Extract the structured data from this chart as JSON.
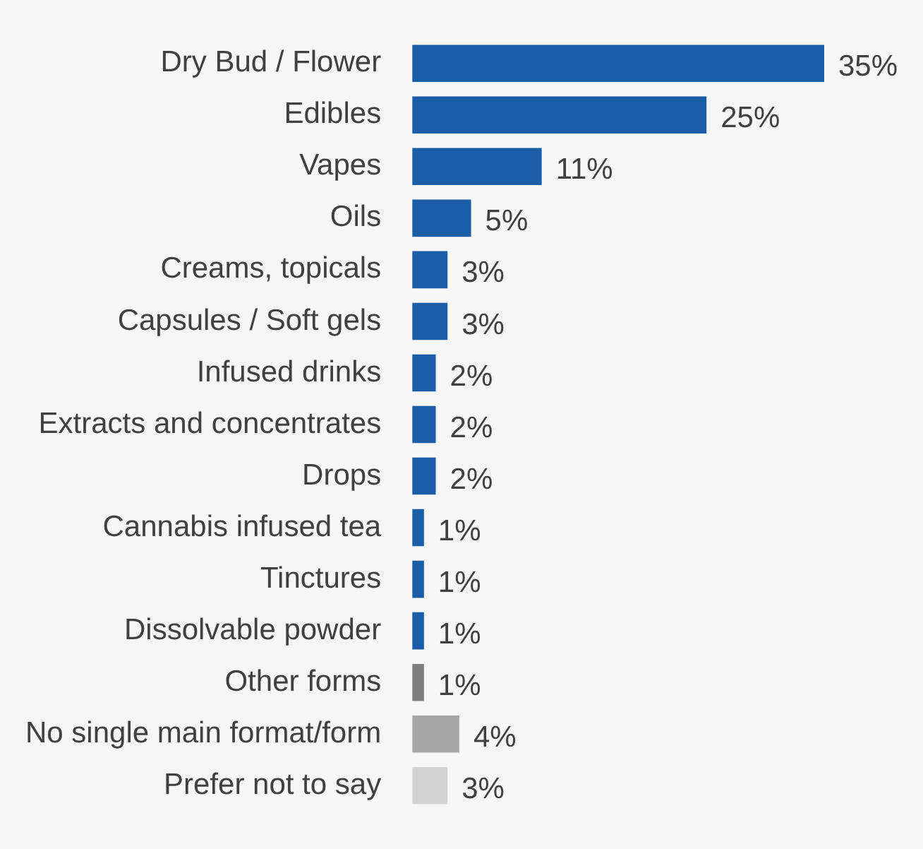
{
  "chart_data": {
    "type": "bar",
    "orientation": "horizontal",
    "legend": false,
    "categories": [
      "Dry Bud / Flower",
      "Edibles",
      "Vapes",
      "Oils",
      "Creams, topicals",
      "Capsules / Soft gels",
      "Infused drinks",
      "Extracts and concentrates",
      "Drops",
      "Cannabis infused tea",
      "Tinctures",
      "Dissolvable powder",
      "Other forms",
      "No single main format/form",
      "Prefer not to say"
    ],
    "values": [
      35,
      25,
      11,
      5,
      3,
      3,
      2,
      2,
      2,
      1,
      1,
      1,
      1,
      4,
      3
    ],
    "value_labels": [
      "35%",
      "25%",
      "11%",
      "5%",
      "3%",
      "3%",
      "2%",
      "2%",
      "2%",
      "1%",
      "1%",
      "1%",
      "1%",
      "4%",
      "3%"
    ],
    "colors": [
      "#1a5ea8",
      "#1a5ea8",
      "#1a5ea8",
      "#1a5ea8",
      "#1a5ea8",
      "#1a5ea8",
      "#1a5ea8",
      "#1a5ea8",
      "#1a5ea8",
      "#1a5ea8",
      "#1a5ea8",
      "#1a5ea8",
      "#7f7f7f",
      "#a6a6a6",
      "#d3d3d3"
    ]
  }
}
